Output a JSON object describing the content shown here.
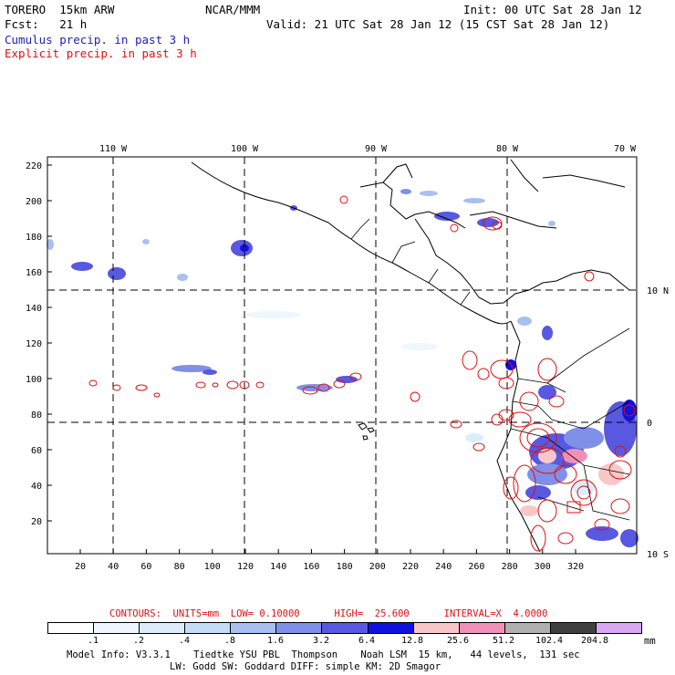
{
  "header": {
    "model": "TORERO  15km ARW",
    "center": "NCAR/MMM",
    "init": "Init: 00 UTC Sat 28 Jan 12",
    "fcst": "Fcst:   21 h",
    "valid": "Valid: 21 UTC Sat 28 Jan 12 (15 CST Sat 28 Jan 12)",
    "field1": "Cumulus precip. in past 3 h",
    "field2": "Explicit precip. in past 3 h"
  },
  "map": {
    "lon_labels": [
      "110 W",
      "100 W",
      "90 W",
      "80 W",
      "70 W"
    ],
    "lat_labels": [
      "10 N",
      "0",
      "10 S"
    ],
    "x_ticks": [
      "20",
      "40",
      "60",
      "80",
      "100",
      "120",
      "140",
      "160",
      "180",
      "200",
      "220",
      "240",
      "260",
      "280",
      "300",
      "320"
    ],
    "y_ticks": [
      "220",
      "200",
      "180",
      "160",
      "140",
      "120",
      "100",
      "80",
      "60",
      "40",
      "20"
    ]
  },
  "contour_info": "CONTOURS:  UNITS=mm  LOW= 0.10000      HIGH=  25.600      INTERVAL=X  4.0000",
  "colorbar": {
    "labels": [
      ".1",
      ".2",
      ".4",
      ".8",
      "1.6",
      "3.2",
      "6.4",
      "12.8",
      "25.6",
      "51.2",
      "102.4",
      "204.8"
    ],
    "units": "mm",
    "colors": [
      "#ffffff",
      "#eef6ff",
      "#dcecfa",
      "#c4dcf5",
      "#a8c0f0",
      "#8090e8",
      "#5858e0",
      "#1010e0",
      "#f8c8c8",
      "#f090b8",
      "#b0b0b0",
      "#404040",
      "#d8a8f0"
    ]
  },
  "footer": {
    "line1": "Model Info: V3.3.1    Tiedtke YSU PBL  Thompson    Noah LSM  15 km,   44 levels,  131 sec",
    "line2": "LW: Godd SW: Goddard DIFF: simple KM: 2D Smagor"
  }
}
